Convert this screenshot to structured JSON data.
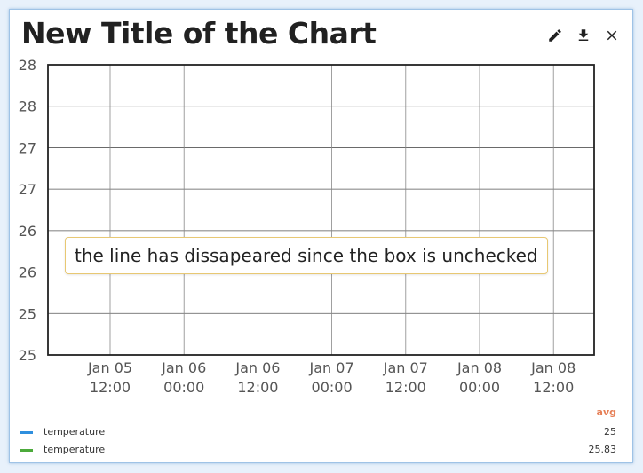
{
  "header": {
    "title": "New Title of the Chart"
  },
  "icons": {
    "edit": "pencil-icon",
    "download": "download-icon",
    "close": "close-icon"
  },
  "annotation": {
    "text": "the line has dissapeared since the box is unchecked"
  },
  "legend": {
    "stat_header": "avg",
    "items": [
      {
        "name": "temperature",
        "value": "25",
        "color": "#2f8fde"
      },
      {
        "name": "temperature",
        "value": "25.83",
        "color": "#4caa3b"
      }
    ]
  },
  "chart_data": {
    "type": "line",
    "title": "New Title of the Chart",
    "xlabel": "",
    "ylabel": "",
    "ylim": [
      25,
      28
    ],
    "y_tick_labels": [
      "28",
      "28",
      "27",
      "27",
      "26",
      "26",
      "25",
      "25"
    ],
    "x_tick_labels": [
      [
        "Jan 05",
        "12:00"
      ],
      [
        "Jan 06",
        "00:00"
      ],
      [
        "Jan 06",
        "12:00"
      ],
      [
        "Jan 07",
        "00:00"
      ],
      [
        "Jan 07",
        "12:00"
      ],
      [
        "Jan 08",
        "00:00"
      ],
      [
        "Jan 08",
        "12:00"
      ]
    ],
    "grid": true,
    "series": [
      {
        "name": "temperature",
        "visible": false,
        "avg": 25
      },
      {
        "name": "temperature",
        "visible": false,
        "avg": 25.83
      }
    ]
  }
}
